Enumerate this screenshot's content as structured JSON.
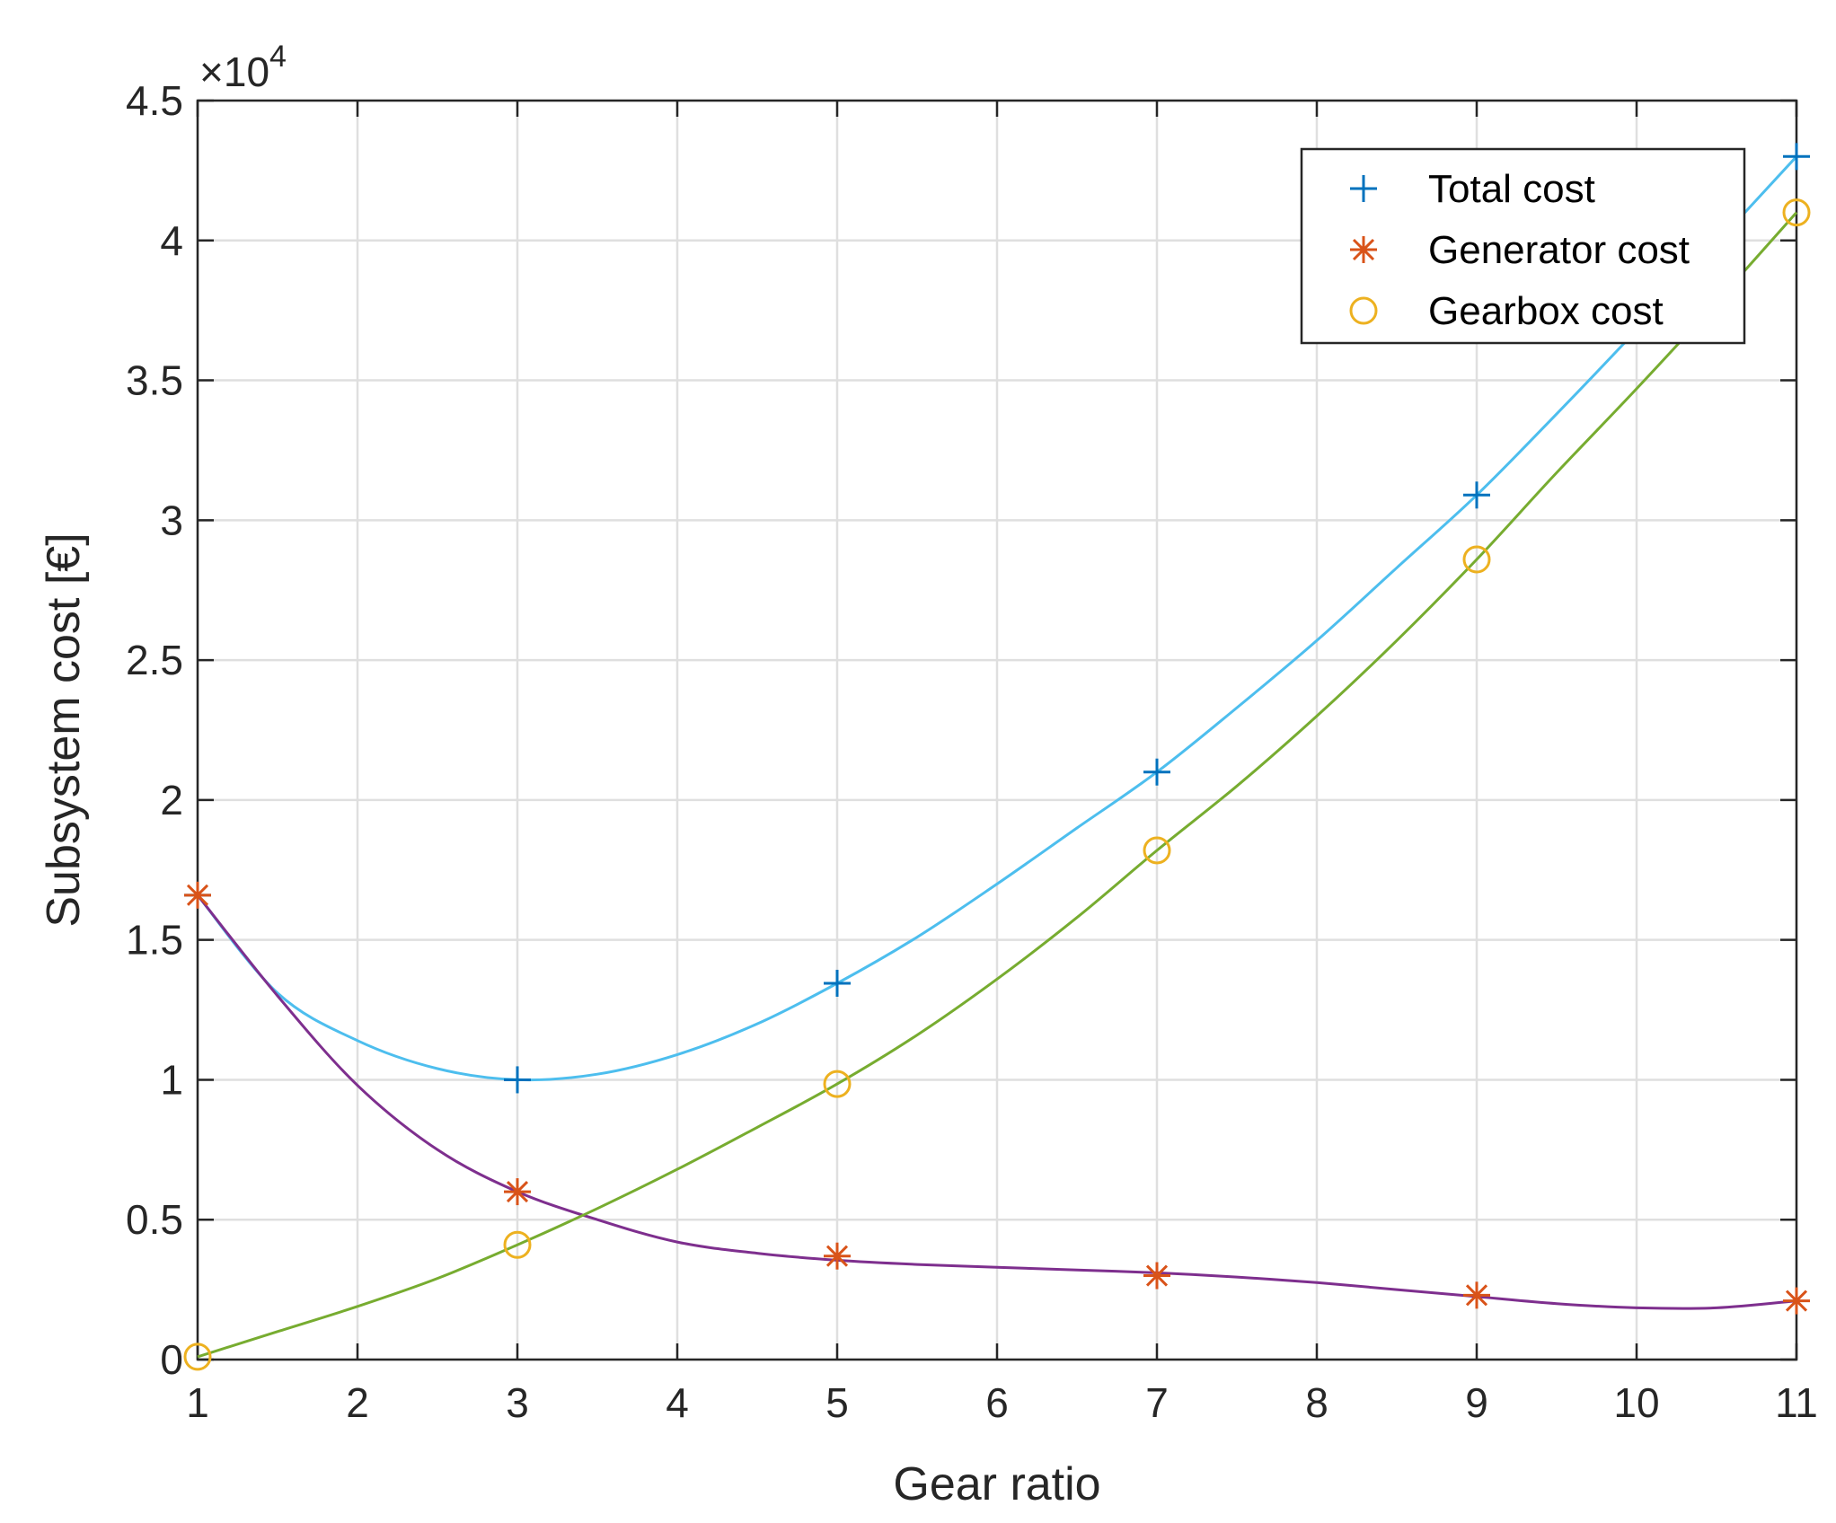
{
  "chart_data": {
    "type": "line",
    "title": "",
    "xlabel": "Gear ratio",
    "ylabel": "Subsystem cost [€]",
    "y_exponent_label": "×10",
    "y_exponent_power": "4",
    "xlim": [
      1,
      11
    ],
    "ylim": [
      0,
      4.5
    ],
    "x_ticks": [
      1,
      2,
      3,
      4,
      5,
      6,
      7,
      8,
      9,
      10,
      11
    ],
    "x_tick_labels": [
      "1",
      "2",
      "3",
      "4",
      "5",
      "6",
      "7",
      "8",
      "9",
      "10",
      "11"
    ],
    "y_ticks": [
      0,
      0.5,
      1,
      1.5,
      2,
      2.5,
      3,
      3.5,
      4,
      4.5
    ],
    "y_tick_labels": [
      "0",
      "0.5",
      "1",
      "1.5",
      "2",
      "2.5",
      "3",
      "3.5",
      "4",
      "4.5"
    ],
    "grid": true,
    "legend_position": "top-right",
    "x": [
      1,
      3,
      5,
      7,
      9,
      11
    ],
    "series": [
      {
        "name": "Total cost",
        "marker": "plus",
        "marker_color": "#0072BD",
        "curve_color": "#4DBEEE",
        "values": [
          1.66,
          1.0,
          1.345,
          2.1,
          3.09,
          4.3
        ],
        "curve": [
          [
            1,
            1.66
          ],
          [
            1.5,
            1.31
          ],
          [
            2,
            1.14
          ],
          [
            2.5,
            1.04
          ],
          [
            3,
            1.0
          ],
          [
            3.5,
            1.02
          ],
          [
            4,
            1.09
          ],
          [
            4.5,
            1.2
          ],
          [
            5,
            1.345
          ],
          [
            5.5,
            1.51
          ],
          [
            6,
            1.7
          ],
          [
            6.5,
            1.9
          ],
          [
            7,
            2.1
          ],
          [
            7.5,
            2.33
          ],
          [
            8,
            2.57
          ],
          [
            8.5,
            2.83
          ],
          [
            9,
            3.09
          ],
          [
            9.5,
            3.38
          ],
          [
            10,
            3.68
          ],
          [
            10.5,
            3.99
          ],
          [
            11,
            4.3
          ]
        ]
      },
      {
        "name": "Generator cost",
        "marker": "asterisk",
        "marker_color": "#D95319",
        "curve_color": "#7E2F8E",
        "values": [
          1.66,
          0.6,
          0.37,
          0.3,
          0.23,
          0.21
        ],
        "curve": [
          [
            1,
            1.66
          ],
          [
            1.5,
            1.3
          ],
          [
            2,
            0.98
          ],
          [
            2.5,
            0.75
          ],
          [
            3,
            0.6
          ],
          [
            3.5,
            0.5
          ],
          [
            4,
            0.42
          ],
          [
            4.5,
            0.38
          ],
          [
            5,
            0.355
          ],
          [
            5.5,
            0.34
          ],
          [
            6,
            0.33
          ],
          [
            6.5,
            0.32
          ],
          [
            7,
            0.31
          ],
          [
            7.5,
            0.295
          ],
          [
            8,
            0.275
          ],
          [
            8.5,
            0.25
          ],
          [
            9,
            0.225
          ],
          [
            9.5,
            0.2
          ],
          [
            10,
            0.185
          ],
          [
            10.5,
            0.185
          ],
          [
            11,
            0.21
          ]
        ]
      },
      {
        "name": "Gearbox cost",
        "marker": "circle",
        "marker_color": "#EDB120",
        "curve_color": "#77AC30",
        "values": [
          0.01,
          0.41,
          0.985,
          1.82,
          2.86,
          4.1
        ],
        "curve": [
          [
            1,
            0.01
          ],
          [
            1.5,
            0.1
          ],
          [
            2,
            0.19
          ],
          [
            2.5,
            0.29
          ],
          [
            3,
            0.41
          ],
          [
            3.5,
            0.54
          ],
          [
            4,
            0.68
          ],
          [
            4.5,
            0.83
          ],
          [
            5,
            0.985
          ],
          [
            5.5,
            1.16
          ],
          [
            6,
            1.36
          ],
          [
            6.5,
            1.58
          ],
          [
            7,
            1.82
          ],
          [
            7.5,
            2.05
          ],
          [
            8,
            2.3
          ],
          [
            8.5,
            2.57
          ],
          [
            9,
            2.86
          ],
          [
            9.5,
            3.17
          ],
          [
            10,
            3.47
          ],
          [
            10.5,
            3.78
          ],
          [
            11,
            4.1
          ]
        ]
      }
    ]
  }
}
